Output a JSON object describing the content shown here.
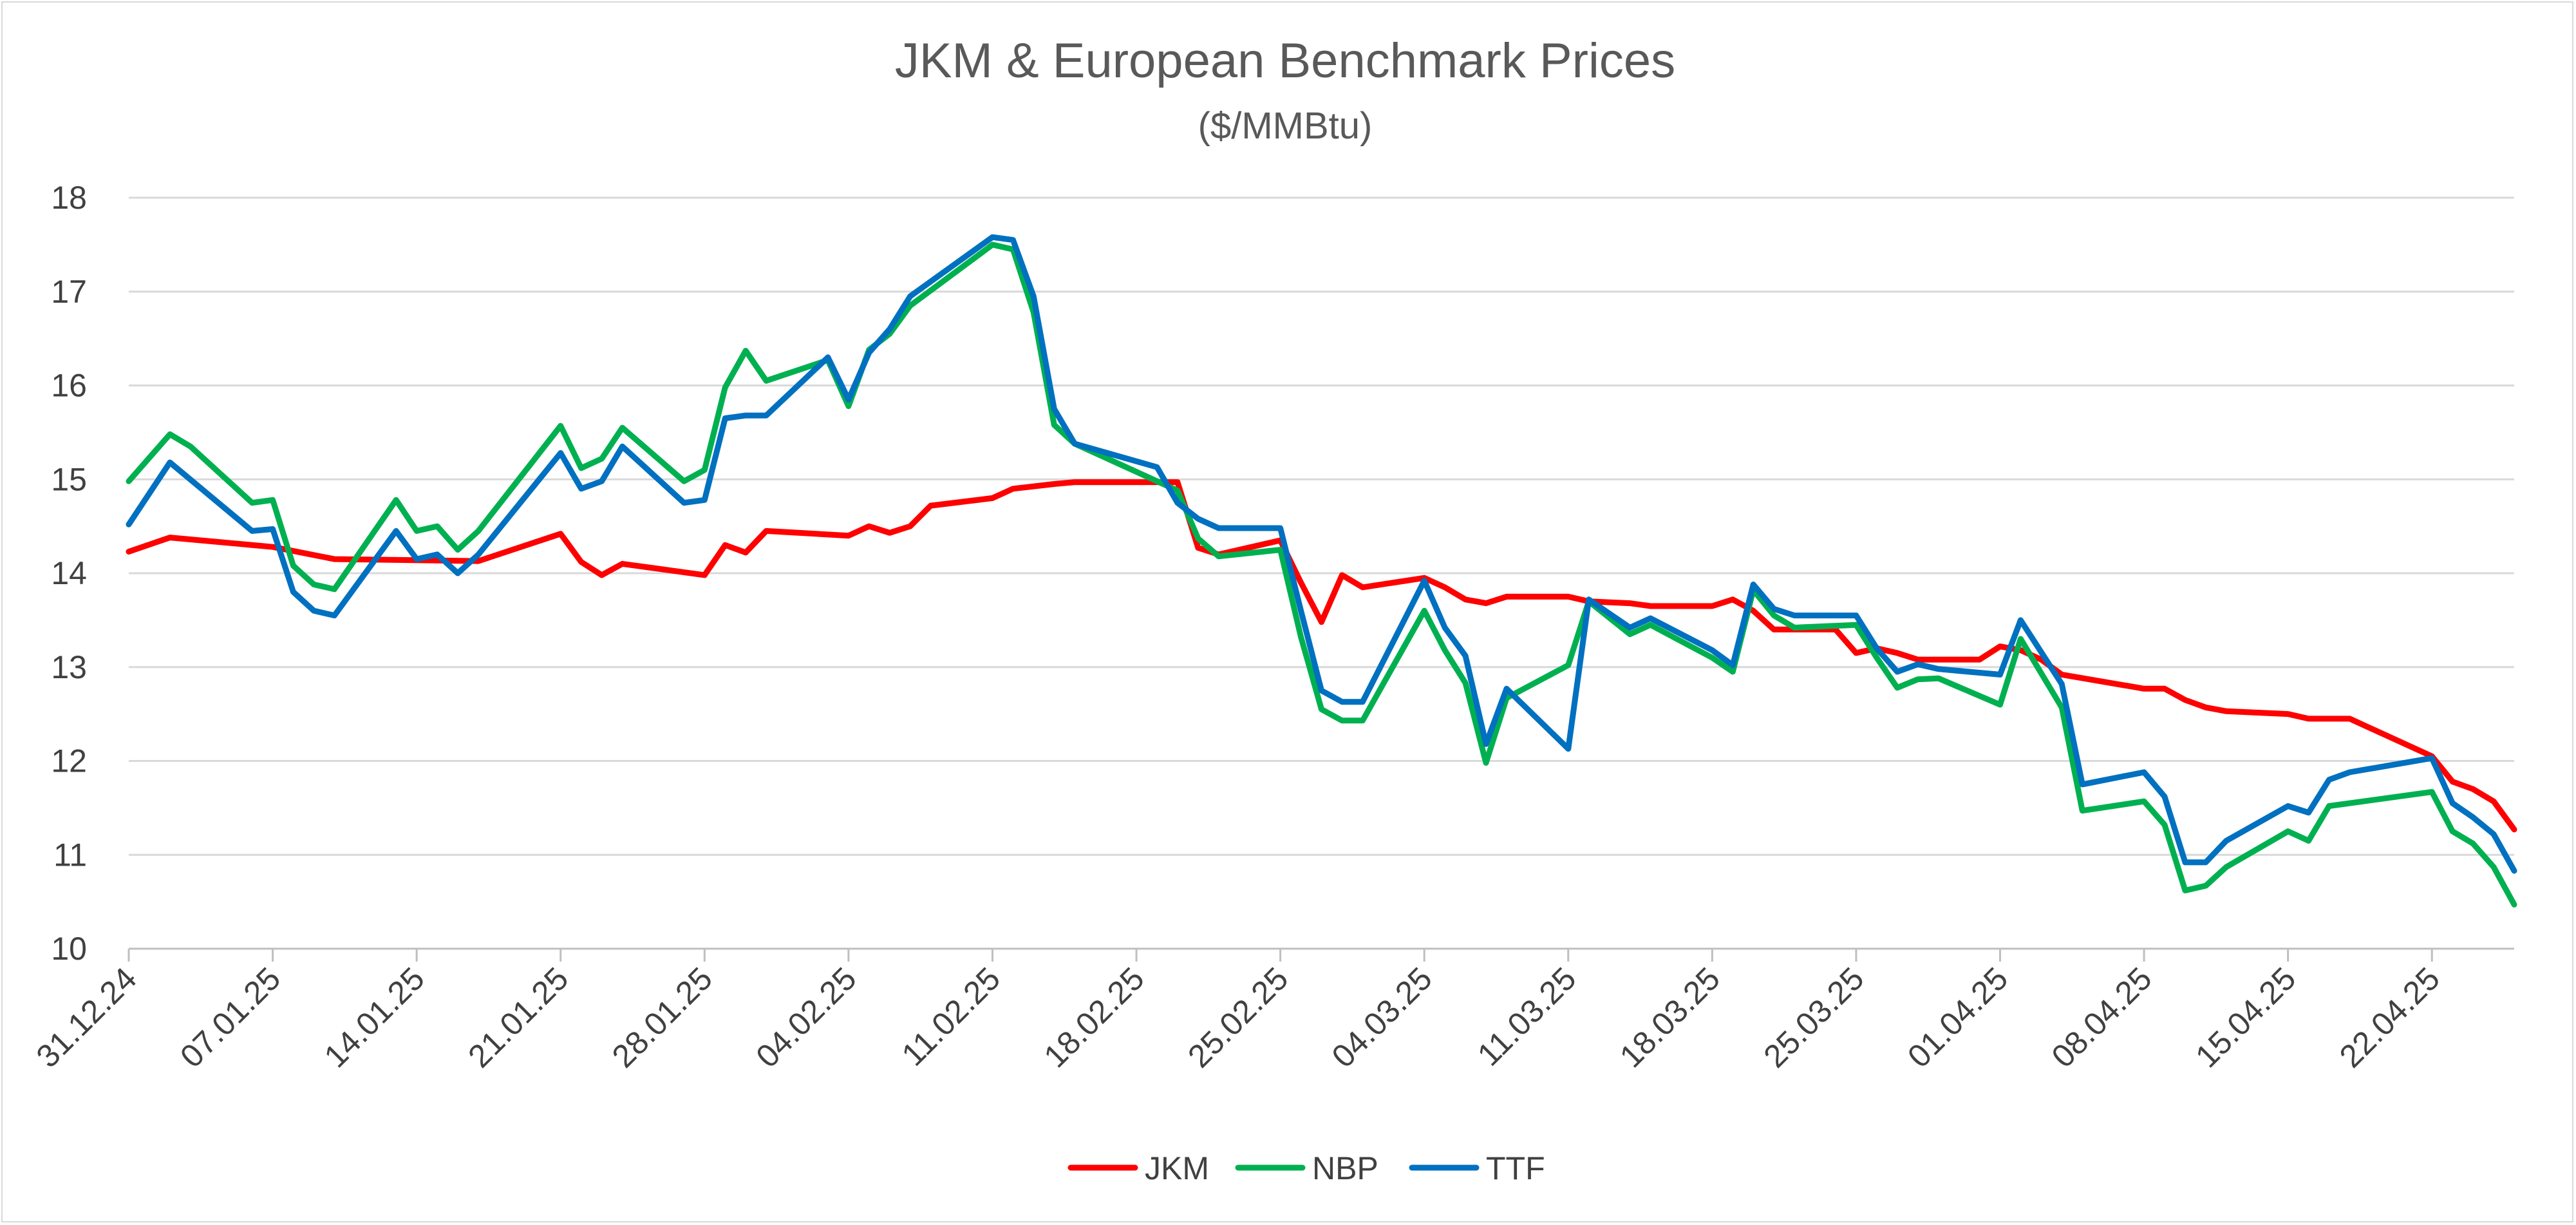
{
  "chart_data": {
    "type": "line",
    "title": "JKM & European Benchmark Prices",
    "subtitle": "($/MMBtu)",
    "xlabel": "",
    "ylabel": "",
    "ylim": [
      10,
      18
    ],
    "yticks": [
      "10",
      "11",
      "12",
      "13",
      "14",
      "15",
      "16",
      "17",
      "18"
    ],
    "xticks": [
      "31.12.24",
      "07.01.25",
      "14.01.25",
      "21.01.25",
      "28.01.25",
      "04.02.25",
      "11.02.25",
      "18.02.25",
      "25.02.25",
      "04.03.25",
      "11.03.25",
      "18.03.25",
      "25.03.25",
      "01.04.25",
      "08.04.25",
      "15.04.25",
      "22.04.25"
    ],
    "x_start": "31.12.24",
    "x_end": "28.04.25",
    "grid": true,
    "legend_position": "bottom",
    "series": [
      {
        "name": "JKM",
        "color": "#ff0000",
        "points": [
          [
            0,
            14.23
          ],
          [
            2,
            14.38
          ],
          [
            7,
            14.28
          ],
          [
            10,
            14.15
          ],
          [
            17,
            14.13
          ],
          [
            21,
            14.42
          ],
          [
            22,
            14.12
          ],
          [
            23,
            13.98
          ],
          [
            24,
            14.1
          ],
          [
            28,
            13.98
          ],
          [
            29,
            14.3
          ],
          [
            30,
            14.22
          ],
          [
            31,
            14.45
          ],
          [
            35,
            14.4
          ],
          [
            36,
            14.5
          ],
          [
            37,
            14.43
          ],
          [
            38,
            14.5
          ],
          [
            39,
            14.72
          ],
          [
            42,
            14.8
          ],
          [
            43,
            14.9
          ],
          [
            45,
            14.95
          ],
          [
            46,
            14.97
          ],
          [
            51,
            14.97
          ],
          [
            52,
            14.27
          ],
          [
            53,
            14.2
          ],
          [
            56,
            14.35
          ],
          [
            57,
            13.9
          ],
          [
            58,
            13.48
          ],
          [
            59,
            13.98
          ],
          [
            60,
            13.85
          ],
          [
            63,
            13.95
          ],
          [
            64,
            13.85
          ],
          [
            65,
            13.72
          ],
          [
            66,
            13.68
          ],
          [
            67,
            13.75
          ],
          [
            70,
            13.75
          ],
          [
            71,
            13.7
          ],
          [
            73,
            13.68
          ],
          [
            74,
            13.65
          ],
          [
            77,
            13.65
          ],
          [
            78,
            13.72
          ],
          [
            79,
            13.6
          ],
          [
            80,
            13.4
          ],
          [
            83,
            13.4
          ],
          [
            84,
            13.15
          ],
          [
            85,
            13.2
          ],
          [
            86,
            13.15
          ],
          [
            87,
            13.08
          ],
          [
            90,
            13.08
          ],
          [
            91,
            13.22
          ],
          [
            92,
            13.18
          ],
          [
            93,
            13.08
          ],
          [
            94,
            12.92
          ],
          [
            98,
            12.77
          ],
          [
            99,
            12.77
          ],
          [
            100,
            12.65
          ],
          [
            101,
            12.57
          ],
          [
            102,
            12.53
          ],
          [
            105,
            12.5
          ],
          [
            106,
            12.45
          ],
          [
            108,
            12.45
          ],
          [
            112,
            12.05
          ],
          [
            113,
            11.78
          ],
          [
            114,
            11.7
          ],
          [
            115,
            11.57
          ],
          [
            116,
            11.27
          ]
        ]
      },
      {
        "name": "NBP",
        "color": "#00b050",
        "points": [
          [
            0,
            14.98
          ],
          [
            2,
            15.48
          ],
          [
            3,
            15.35
          ],
          [
            6,
            14.75
          ],
          [
            7,
            14.78
          ],
          [
            8,
            14.08
          ],
          [
            9,
            13.88
          ],
          [
            10,
            13.83
          ],
          [
            13,
            14.78
          ],
          [
            14,
            14.45
          ],
          [
            15,
            14.5
          ],
          [
            16,
            14.25
          ],
          [
            17,
            14.45
          ],
          [
            21,
            15.57
          ],
          [
            22,
            15.12
          ],
          [
            23,
            15.22
          ],
          [
            24,
            15.55
          ],
          [
            27,
            14.98
          ],
          [
            28,
            15.1
          ],
          [
            29,
            15.98
          ],
          [
            30,
            16.37
          ],
          [
            31,
            16.05
          ],
          [
            34,
            16.27
          ],
          [
            35,
            15.78
          ],
          [
            36,
            16.38
          ],
          [
            37,
            16.55
          ],
          [
            38,
            16.85
          ],
          [
            42,
            17.5
          ],
          [
            43,
            17.45
          ],
          [
            44,
            16.78
          ],
          [
            45,
            15.58
          ],
          [
            46,
            15.38
          ],
          [
            51,
            14.88
          ],
          [
            52,
            14.37
          ],
          [
            53,
            14.18
          ],
          [
            56,
            14.25
          ],
          [
            57,
            13.32
          ],
          [
            58,
            12.55
          ],
          [
            59,
            12.43
          ],
          [
            60,
            12.43
          ],
          [
            63,
            13.6
          ],
          [
            64,
            13.18
          ],
          [
            65,
            12.83
          ],
          [
            66,
            11.98
          ],
          [
            67,
            12.67
          ],
          [
            70,
            13.02
          ],
          [
            71,
            13.7
          ],
          [
            73,
            13.35
          ],
          [
            74,
            13.45
          ],
          [
            77,
            13.1
          ],
          [
            78,
            12.95
          ],
          [
            79,
            13.82
          ],
          [
            80,
            13.55
          ],
          [
            81,
            13.42
          ],
          [
            84,
            13.45
          ],
          [
            85,
            13.1
          ],
          [
            86,
            12.78
          ],
          [
            87,
            12.87
          ],
          [
            88,
            12.88
          ],
          [
            91,
            12.6
          ],
          [
            92,
            13.3
          ],
          [
            94,
            12.57
          ],
          [
            95,
            11.47
          ],
          [
            98,
            11.57
          ],
          [
            99,
            11.32
          ],
          [
            100,
            10.62
          ],
          [
            101,
            10.67
          ],
          [
            102,
            10.87
          ],
          [
            105,
            11.25
          ],
          [
            106,
            11.15
          ],
          [
            107,
            11.52
          ],
          [
            112,
            11.67
          ],
          [
            113,
            11.25
          ],
          [
            114,
            11.12
          ],
          [
            115,
            10.87
          ],
          [
            116,
            10.47
          ]
        ]
      },
      {
        "name": "TTF",
        "color": "#0070c0",
        "points": [
          [
            0,
            14.52
          ],
          [
            2,
            15.18
          ],
          [
            6,
            14.45
          ],
          [
            7,
            14.47
          ],
          [
            8,
            13.8
          ],
          [
            9,
            13.6
          ],
          [
            10,
            13.55
          ],
          [
            13,
            14.45
          ],
          [
            14,
            14.15
          ],
          [
            15,
            14.2
          ],
          [
            16,
            14.0
          ],
          [
            17,
            14.2
          ],
          [
            21,
            15.28
          ],
          [
            22,
            14.9
          ],
          [
            23,
            14.98
          ],
          [
            24,
            15.35
          ],
          [
            27,
            14.75
          ],
          [
            28,
            14.78
          ],
          [
            29,
            15.65
          ],
          [
            30,
            15.68
          ],
          [
            31,
            15.68
          ],
          [
            34,
            16.3
          ],
          [
            35,
            15.85
          ],
          [
            36,
            16.35
          ],
          [
            37,
            16.6
          ],
          [
            38,
            16.95
          ],
          [
            42,
            17.58
          ],
          [
            43,
            17.55
          ],
          [
            44,
            16.95
          ],
          [
            45,
            15.75
          ],
          [
            46,
            15.38
          ],
          [
            50,
            15.13
          ],
          [
            51,
            14.75
          ],
          [
            52,
            14.58
          ],
          [
            53,
            14.48
          ],
          [
            56,
            14.48
          ],
          [
            57,
            13.6
          ],
          [
            58,
            12.75
          ],
          [
            59,
            12.63
          ],
          [
            60,
            12.63
          ],
          [
            63,
            13.92
          ],
          [
            64,
            13.42
          ],
          [
            65,
            13.12
          ],
          [
            66,
            12.18
          ],
          [
            67,
            12.77
          ],
          [
            70,
            12.13
          ],
          [
            71,
            13.72
          ],
          [
            73,
            13.42
          ],
          [
            74,
            13.52
          ],
          [
            77,
            13.18
          ],
          [
            78,
            13.02
          ],
          [
            79,
            13.88
          ],
          [
            80,
            13.62
          ],
          [
            81,
            13.55
          ],
          [
            84,
            13.55
          ],
          [
            85,
            13.2
          ],
          [
            86,
            12.95
          ],
          [
            87,
            13.03
          ],
          [
            88,
            12.98
          ],
          [
            91,
            12.92
          ],
          [
            92,
            13.5
          ],
          [
            94,
            12.82
          ],
          [
            95,
            11.75
          ],
          [
            98,
            11.88
          ],
          [
            99,
            11.62
          ],
          [
            100,
            10.92
          ],
          [
            101,
            10.92
          ],
          [
            102,
            11.15
          ],
          [
            105,
            11.52
          ],
          [
            106,
            11.45
          ],
          [
            107,
            11.8
          ],
          [
            108,
            11.88
          ],
          [
            112,
            12.03
          ],
          [
            113,
            11.55
          ],
          [
            114,
            11.4
          ],
          [
            115,
            11.22
          ],
          [
            116,
            10.83
          ]
        ]
      }
    ]
  }
}
